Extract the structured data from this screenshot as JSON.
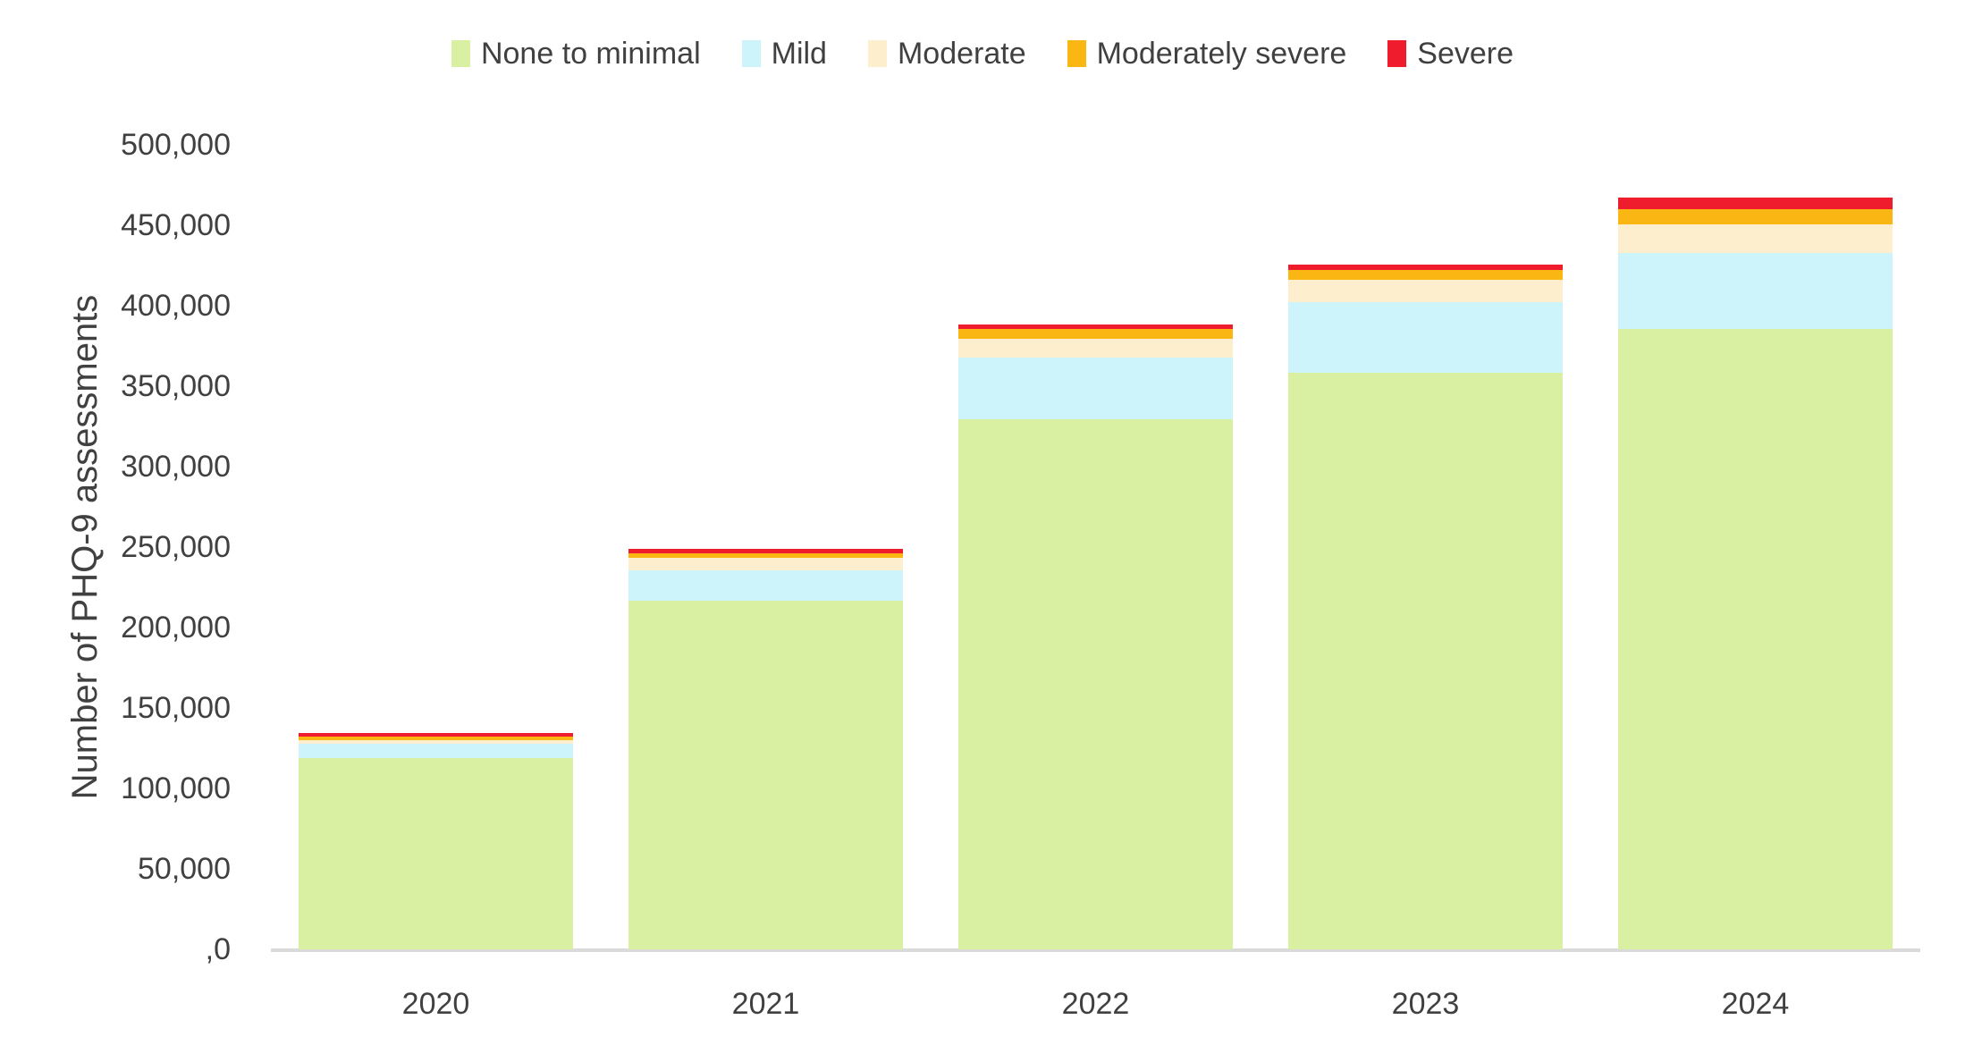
{
  "y_axis": {
    "title": "Number of PHQ-9 assessments",
    "ticks": [
      {
        "label": "500,000",
        "value": 500000
      },
      {
        "label": "450,000",
        "value": 450000
      },
      {
        "label": "400,000",
        "value": 400000
      },
      {
        "label": "350,000",
        "value": 350000
      },
      {
        "label": "300,000",
        "value": 300000
      },
      {
        "label": "250,000",
        "value": 250000
      },
      {
        "label": "200,000",
        "value": 200000
      },
      {
        "label": "150,000",
        "value": 150000
      },
      {
        "label": "100,000",
        "value": 100000
      },
      {
        "label": "50,000",
        "value": 50000
      },
      {
        "label": ",0",
        "value": 0
      }
    ]
  },
  "chart_data": {
    "type": "bar",
    "stacked": true,
    "title": "",
    "xlabel": "",
    "ylabel": "Number of PHQ-9 assessments",
    "ylim": [
      0,
      500000
    ],
    "grid": false,
    "legend_position": "top",
    "categories": [
      "2020",
      "2021",
      "2022",
      "2023",
      "2024"
    ],
    "series": [
      {
        "name": "None to minimal",
        "color": "#d9efa2",
        "values": [
          119000,
          216500,
          329500,
          358500,
          385500
        ]
      },
      {
        "name": "Mild",
        "color": "#cdf4fb",
        "values": [
          9000,
          19000,
          38500,
          44000,
          47500
        ]
      },
      {
        "name": "Moderate",
        "color": "#fdeecd",
        "values": [
          2000,
          8000,
          11500,
          13500,
          17500
        ]
      },
      {
        "name": "Moderately severe",
        "color": "#fab613",
        "values": [
          2000,
          2500,
          6000,
          6000,
          9500
        ]
      },
      {
        "name": "Severe",
        "color": "#ee1c2d",
        "values": [
          2500,
          3000,
          3000,
          3500,
          7000
        ]
      }
    ]
  },
  "colors": {
    "background": "#ffffff",
    "axis_line": "#dadada",
    "text": "#404040"
  }
}
